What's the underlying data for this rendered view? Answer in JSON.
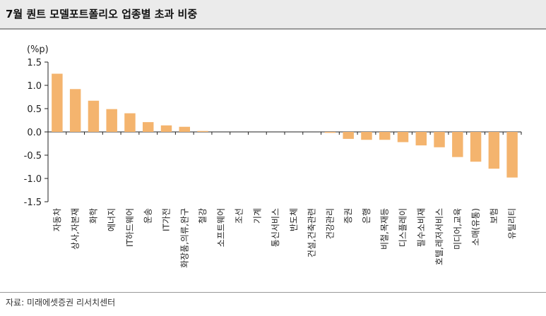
{
  "title": "7월 퀀트 모델포트폴리오 업종별 초과 비중",
  "source": "자료: 미래에셋증권 리서치센터",
  "chart_data": {
    "type": "bar",
    "ylabel": "(%p)",
    "ylim": [
      -1.5,
      1.5
    ],
    "yticks": [
      "1.5",
      "1.0",
      "0.5",
      "0.0",
      "-0.5",
      "-1.0",
      "-1.5"
    ],
    "categories": [
      "자동차",
      "상사,자본재",
      "화학",
      "에너지",
      "IT하드웨어",
      "운송",
      "IT가전",
      "화장품,의류,완구",
      "철강",
      "소프트웨어",
      "조선",
      "기계",
      "통신서비스",
      "반도체",
      "건설,건축관련",
      "건강관리",
      "증권",
      "은행",
      "비철,목재등",
      "디스플레이",
      "필수소비재",
      "호텔,레저서비스",
      "미디어,교육",
      "소매(유통)",
      "보험",
      "유틸리티"
    ],
    "values": [
      1.25,
      0.92,
      0.67,
      0.49,
      0.4,
      0.21,
      0.14,
      0.11,
      0.02,
      0.0,
      0.0,
      0.0,
      0.0,
      0.0,
      0.0,
      -0.02,
      -0.15,
      -0.17,
      -0.17,
      -0.22,
      -0.29,
      -0.33,
      -0.54,
      -0.64,
      -0.79,
      -0.98
    ],
    "bar_color": "#f4b46e",
    "grid": false
  }
}
